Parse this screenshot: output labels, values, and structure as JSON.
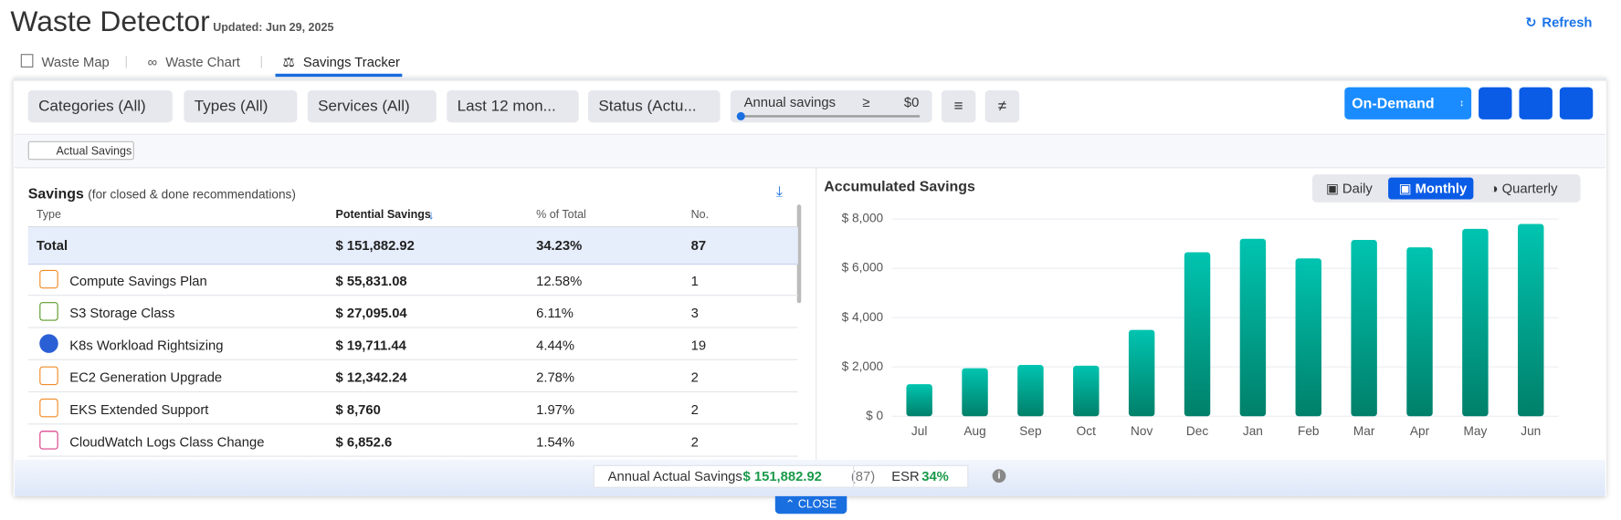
{
  "header": {
    "title": "Waste Detector",
    "updated": "Updated: Jun 29, 2025",
    "refresh": "Refresh"
  },
  "tabs": [
    "Waste Map",
    "Waste Chart",
    "Savings Tracker"
  ],
  "filters": [
    "Categories (All)",
    "Types (All)",
    "Services (All)",
    "Last 12 mon...",
    "Status (Actu..."
  ],
  "annual_filter": {
    "label": "Annual savings",
    "operator": "≥",
    "value": "$0"
  },
  "pricing": "On-Demand",
  "tag": "Actual Savings",
  "table": {
    "title": "Savings",
    "subtitle": "(for closed & done recommendations)",
    "columns": [
      "Type",
      "Potential Savings",
      "% of Total",
      "No."
    ],
    "total": [
      "Total",
      "$ 151,882.92",
      "34.23%",
      "87"
    ],
    "rows": [
      [
        "Compute Savings Plan",
        "$ 55,831.08",
        "12.58%",
        "1"
      ],
      [
        "S3 Storage Class",
        "$ 27,095.04",
        "6.11%",
        "3"
      ],
      [
        "K8s Workload Rightsizing",
        "$ 19,711.44",
        "4.44%",
        "19"
      ],
      [
        "EC2 Generation Upgrade",
        "$ 12,342.24",
        "2.78%",
        "2"
      ],
      [
        "EKS Extended Support",
        "$ 8,760",
        "1.97%",
        "2"
      ],
      [
        "CloudWatch Logs Class Change",
        "$ 6,852.6",
        "1.54%",
        "2"
      ]
    ]
  },
  "period_toggle": [
    "Daily",
    "Monthly",
    "Quarterly"
  ],
  "chart_data": {
    "type": "bar",
    "title": "Accumulated Savings",
    "categories": [
      "Jul",
      "Aug",
      "Sep",
      "Oct",
      "Nov",
      "Dec",
      "Jan",
      "Feb",
      "Mar",
      "Apr",
      "May",
      "Jun"
    ],
    "values": [
      1300,
      1950,
      2080,
      2050,
      3500,
      6650,
      7200,
      6400,
      7150,
      6850,
      7600,
      7800
    ],
    "color": "#00c4b0",
    "ylim": [
      0,
      8000
    ],
    "yticks": [
      {
        "value": 0,
        "label": "$ 0"
      },
      {
        "value": 2000,
        "label": "$ 2,000"
      },
      {
        "value": 4000,
        "label": "$ 4,000"
      },
      {
        "value": 6000,
        "label": "$ 6,000"
      },
      {
        "value": 8000,
        "label": "$ 8,000"
      }
    ],
    "grid": true
  },
  "footer": {
    "label": "Annual Actual Savings",
    "amount": "$ 151,882.92",
    "count": "(87)",
    "esr_label": "ESR",
    "esr_value": "34%",
    "close": "CLOSE"
  }
}
